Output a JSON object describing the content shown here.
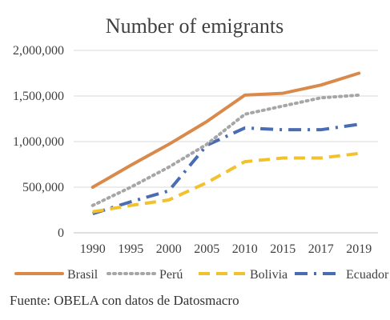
{
  "chart_data": {
    "type": "line",
    "title": "Number of emigrants",
    "categories": [
      "1990",
      "1995",
      "2000",
      "2005",
      "2010",
      "2015",
      "2017",
      "2019"
    ],
    "y_ticks": [
      "0",
      "500,000",
      "1,000,000",
      "1,500,000",
      "2,000,000"
    ],
    "ylim": [
      0,
      2000000
    ],
    "grid": true,
    "legend_position": "bottom",
    "series": [
      {
        "name": "Brasil",
        "color": "#D98A4B",
        "dash": "solid",
        "values": [
          500000,
          740000,
          970000,
          1220000,
          1510000,
          1530000,
          1620000,
          1750000
        ]
      },
      {
        "name": "Perú",
        "color": "#A6A6A6",
        "dash": "dotted",
        "values": [
          300000,
          500000,
          720000,
          970000,
          1300000,
          1390000,
          1480000,
          1510000
        ]
      },
      {
        "name": "Bolivia",
        "color": "#F2C12E",
        "dash": "dashed",
        "values": [
          230000,
          300000,
          360000,
          550000,
          780000,
          820000,
          820000,
          870000
        ]
      },
      {
        "name": "Ecuador",
        "color": "#4A6CB3",
        "dash": "dashdot",
        "values": [
          210000,
          340000,
          460000,
          960000,
          1150000,
          1130000,
          1130000,
          1190000
        ]
      }
    ]
  },
  "source_text": "Fuente: OBELA con datos de Datosmacro"
}
